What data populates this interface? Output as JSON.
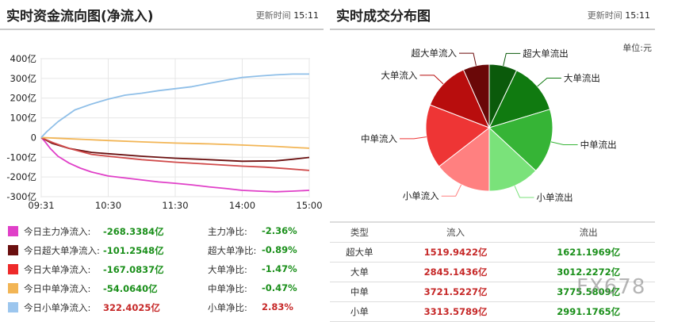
{
  "left": {
    "title": "实时资金流向图(净流入)",
    "update_label": "更新时间",
    "update_time": "15:11"
  },
  "right": {
    "title": "实时成交分布图",
    "update_label": "更新时间",
    "update_time": "15:11",
    "unit": "单位:元"
  },
  "chart_data": [
    {
      "type": "line",
      "title": "实时资金流向图(净流入)",
      "ylabel": "",
      "xlabel": "",
      "ylim": [
        -300,
        400
      ],
      "yticks": [
        "400亿",
        "300亿",
        "200亿",
        "100亿",
        "0",
        "-100亿",
        "-200亿",
        "-300亿"
      ],
      "ytick_values": [
        400,
        300,
        200,
        100,
        0,
        -100,
        -200,
        -300
      ],
      "xticks": [
        "09:31",
        "10:30",
        "11:30",
        "14:00",
        "15:00"
      ],
      "xtick_values": [
        0,
        60,
        120,
        180,
        240
      ],
      "xlim": [
        0,
        240
      ],
      "grid": true,
      "series": [
        {
          "name": "今日主力净流入",
          "color": "#e040c8",
          "x": [
            0,
            3,
            8,
            15,
            25,
            35,
            45,
            60,
            75,
            90,
            105,
            120,
            135,
            150,
            165,
            180,
            195,
            210,
            225,
            240
          ],
          "values": [
            0,
            -18,
            -55,
            -95,
            -130,
            -155,
            -175,
            -195,
            -205,
            -215,
            -225,
            -232,
            -240,
            -250,
            -258,
            -268,
            -272,
            -275,
            -272,
            -268
          ]
        },
        {
          "name": "今日超大单净流入",
          "color": "#6a0f0f",
          "x": [
            0,
            10,
            25,
            45,
            60,
            90,
            120,
            150,
            180,
            210,
            225,
            240
          ],
          "values": [
            0,
            -30,
            -55,
            -75,
            -82,
            -95,
            -105,
            -112,
            -120,
            -118,
            -110,
            -101
          ]
        },
        {
          "name": "今日大单净流入",
          "color": "#d04a4a",
          "x": [
            0,
            10,
            25,
            45,
            60,
            90,
            120,
            150,
            180,
            200,
            220,
            240
          ],
          "values": [
            0,
            -25,
            -55,
            -85,
            -95,
            -112,
            -125,
            -135,
            -145,
            -150,
            -158,
            -167
          ]
        },
        {
          "name": "今日中单净流入",
          "color": "#f2b555",
          "x": [
            0,
            20,
            40,
            60,
            90,
            120,
            150,
            180,
            210,
            240
          ],
          "values": [
            0,
            -5,
            -10,
            -15,
            -22,
            -28,
            -32,
            -38,
            -45,
            -54
          ]
        },
        {
          "name": "今日小单净流入",
          "color": "#8fbfe8",
          "x": [
            0,
            5,
            15,
            30,
            45,
            60,
            75,
            90,
            105,
            120,
            135,
            150,
            165,
            180,
            195,
            210,
            225,
            240
          ],
          "values": [
            0,
            30,
            80,
            140,
            170,
            195,
            215,
            225,
            238,
            248,
            258,
            275,
            290,
            305,
            312,
            318,
            322,
            322
          ]
        }
      ]
    },
    {
      "type": "pie",
      "title": "实时成交分布图",
      "slices": [
        {
          "label": "超大单流出",
          "value": 1621.1969,
          "color": "#0b5a0b"
        },
        {
          "label": "大单流出",
          "value": 3012.2272,
          "color": "#107a10"
        },
        {
          "label": "中单流出",
          "value": 3775.5809,
          "color": "#36b436"
        },
        {
          "label": "小单流出",
          "value": 2991.1765,
          "color": "#7ae27a"
        },
        {
          "label": "小单流入",
          "value": 3313.5789,
          "color": "#ff8080"
        },
        {
          "label": "中单流入",
          "value": 3721.5227,
          "color": "#ee3535"
        },
        {
          "label": "大单流入",
          "value": 2845.1436,
          "color": "#b80d0d"
        },
        {
          "label": "超大单流入",
          "value": 1519.9422,
          "color": "#6a0808"
        }
      ]
    }
  ],
  "summary_rows": [
    {
      "color": "#e040c8",
      "label": "今日主力净流入:",
      "value": "-268.3384亿",
      "ratio_label": "主力净比:",
      "ratio": "-2.36%",
      "value_sign": "neg",
      "ratio_sign": "neg"
    },
    {
      "color": "#6a0f0f",
      "label": "今日超大单净流入:",
      "value": "-101.2548亿",
      "ratio_label": "超大单净比:",
      "ratio": "-0.89%",
      "value_sign": "neg",
      "ratio_sign": "neg"
    },
    {
      "color": "#ee2a2a",
      "label": "今日大单净流入:",
      "value": "-167.0837亿",
      "ratio_label": "大单净比:",
      "ratio": "-1.47%",
      "value_sign": "neg",
      "ratio_sign": "neg"
    },
    {
      "color": "#f2b555",
      "label": "今日中单净流入:",
      "value": "-54.0640亿",
      "ratio_label": "中单净比:",
      "ratio": "-0.47%",
      "value_sign": "neg",
      "ratio_sign": "neg"
    },
    {
      "color": "#9cc6ee",
      "label": "今日小单净流入:",
      "value": "322.4025亿",
      "ratio_label": "小单净比:",
      "ratio": "2.83%",
      "value_sign": "pos",
      "ratio_sign": "pos"
    }
  ],
  "trade_table": {
    "headers": [
      "类型",
      "流入",
      "流出"
    ],
    "rows": [
      {
        "type": "超大单",
        "in": "1519.9422亿",
        "out": "1621.1969亿"
      },
      {
        "type": "大单",
        "in": "2845.1436亿",
        "out": "3012.2272亿"
      },
      {
        "type": "中单",
        "in": "3721.5227亿",
        "out": "3775.5809亿"
      },
      {
        "type": "小单",
        "in": "3313.5789亿",
        "out": "2991.1765亿"
      }
    ]
  },
  "watermark": "FX678"
}
